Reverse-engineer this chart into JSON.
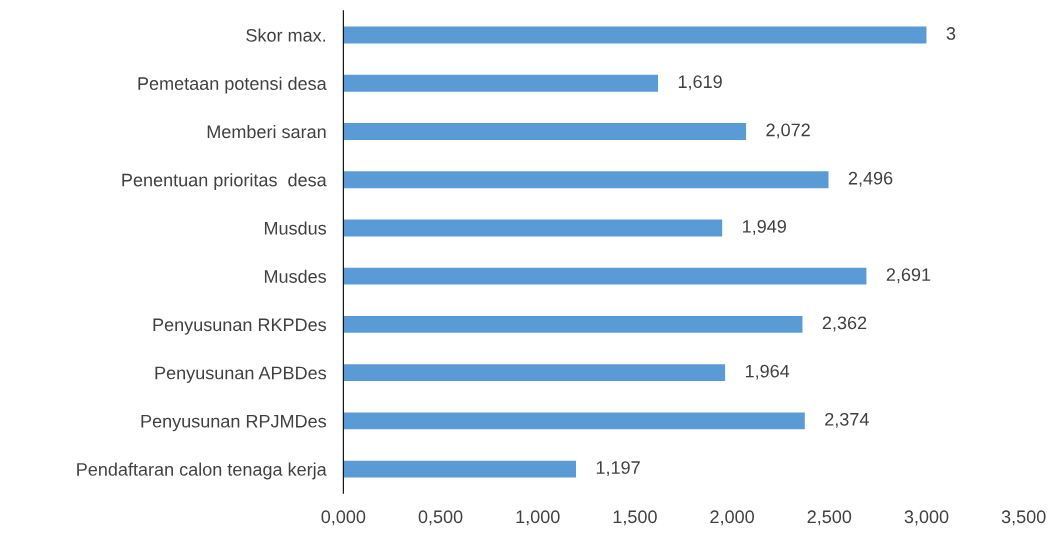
{
  "chart_data": {
    "type": "bar",
    "orientation": "horizontal",
    "categories": [
      "Skor max.",
      "Pemetaan potensi desa",
      "Memberi saran",
      "Penentuan prioritas  desa",
      "Musdus",
      "Musdes",
      "Penyusunan RKPDes",
      "Penyusunan APBDes",
      "Penyusunan RPJMDes",
      "Pendaftaran calon tenaga kerja"
    ],
    "values": [
      3,
      1.619,
      2.072,
      2.496,
      1.949,
      2.691,
      2.362,
      1.964,
      2.374,
      1.197
    ],
    "value_labels": [
      "3",
      "1,619",
      "2,072",
      "2,496",
      "1,949",
      "2,691",
      "2,362",
      "1,964",
      "2,374",
      "1,197"
    ],
    "color": "#5b9bd5",
    "xlim": [
      0,
      3.5
    ],
    "xticks": [
      {
        "value": 0,
        "label": "0,000"
      },
      {
        "value": 0.5,
        "label": "0,500"
      },
      {
        "value": 1,
        "label": "1,000"
      },
      {
        "value": 1.5,
        "label": "1,500"
      },
      {
        "value": 2,
        "label": "2,000"
      },
      {
        "value": 2.5,
        "label": "2,500"
      },
      {
        "value": 3,
        "label": "3,000"
      },
      {
        "value": 3.5,
        "label": "3,500"
      }
    ],
    "grid": false,
    "legend": false
  }
}
